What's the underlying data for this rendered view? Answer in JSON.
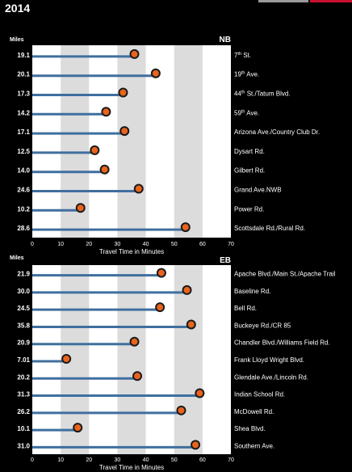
{
  "page": {
    "year": "2014"
  },
  "colors": {
    "bar": "#3f6f9e",
    "dot_fill": "#e8641c",
    "dot_stroke": "#1a1a1a",
    "band_light": "#dcdcdc",
    "band_dark": "#c6c6c6",
    "plot_bg": "#ffffff"
  },
  "chart_data": [
    {
      "type": "lollipop",
      "title": "NB",
      "ylabel": "Miles",
      "xlabel": "Travel Time in Minutes",
      "xlim": [
        0,
        70
      ],
      "xticks": [
        0,
        10,
        20,
        30,
        40,
        50,
        60,
        70
      ],
      "grid_bands": [
        [
          10,
          20
        ],
        [
          30,
          40
        ],
        [
          50,
          60
        ]
      ],
      "rows": [
        {
          "label": "7th St.",
          "miles": "19.1",
          "minutes": 36
        },
        {
          "label": "19th Ave.",
          "miles": "20.1",
          "minutes": 43.5
        },
        {
          "label": "44th St./Tatum Blvd.",
          "miles": "17.3",
          "minutes": 32
        },
        {
          "label": "59th Ave.",
          "miles": "14.2",
          "minutes": 26
        },
        {
          "label": "Arizona Ave./Country Club Dr.",
          "miles": "17.1",
          "minutes": 32.5
        },
        {
          "label": "Dysart Rd.",
          "miles": "12.5",
          "minutes": 22
        },
        {
          "label": "Gilbert Rd.",
          "miles": "14.0",
          "minutes": 25.5
        },
        {
          "label": "Grand Ave.NWB",
          "miles": "24.6",
          "minutes": 37.5
        },
        {
          "label": "Power Rd.",
          "miles": "10.2",
          "minutes": 17
        },
        {
          "label": "Scottsdale Rd./Rural Rd.",
          "miles": "28.6",
          "minutes": 54
        }
      ]
    },
    {
      "type": "lollipop",
      "title": "EB",
      "ylabel": "Miles",
      "xlabel": "Travel Time in Minutes",
      "xlim": [
        0,
        70
      ],
      "xticks": [
        0,
        10,
        20,
        30,
        40,
        50,
        60,
        70
      ],
      "grid_bands": [
        [
          10,
          20
        ],
        [
          30,
          40
        ],
        [
          50,
          60
        ]
      ],
      "rows": [
        {
          "label": "Apache Blvd./Main St./Apache Trail",
          "miles": "21.9",
          "minutes": 45.5
        },
        {
          "label": "Baseline Rd.",
          "miles": "30.0",
          "minutes": 54.5
        },
        {
          "label": "Bell Rd.",
          "miles": "24.5",
          "minutes": 45
        },
        {
          "label": "Buckeye Rd./CR 85",
          "miles": "35.8",
          "minutes": 56
        },
        {
          "label": "Chandler Blvd./Williams Field Rd.",
          "miles": "20.9",
          "minutes": 36
        },
        {
          "label": "Frank Lloyd Wright Blvd.",
          "miles": "7.01",
          "minutes": 12
        },
        {
          "label": "Glendale Ave./Lincoln Rd.",
          "miles": "20.2",
          "minutes": 37
        },
        {
          "label": "Indian School Rd.",
          "miles": "31.3",
          "minutes": 59
        },
        {
          "label": "McDowell Rd.",
          "miles": "26.2",
          "minutes": 52.5
        },
        {
          "label": "Shea Blvd.",
          "miles": "10.1",
          "minutes": 16
        },
        {
          "label": "Southern Ave.",
          "miles": "31.0",
          "minutes": 57.5
        }
      ]
    }
  ]
}
